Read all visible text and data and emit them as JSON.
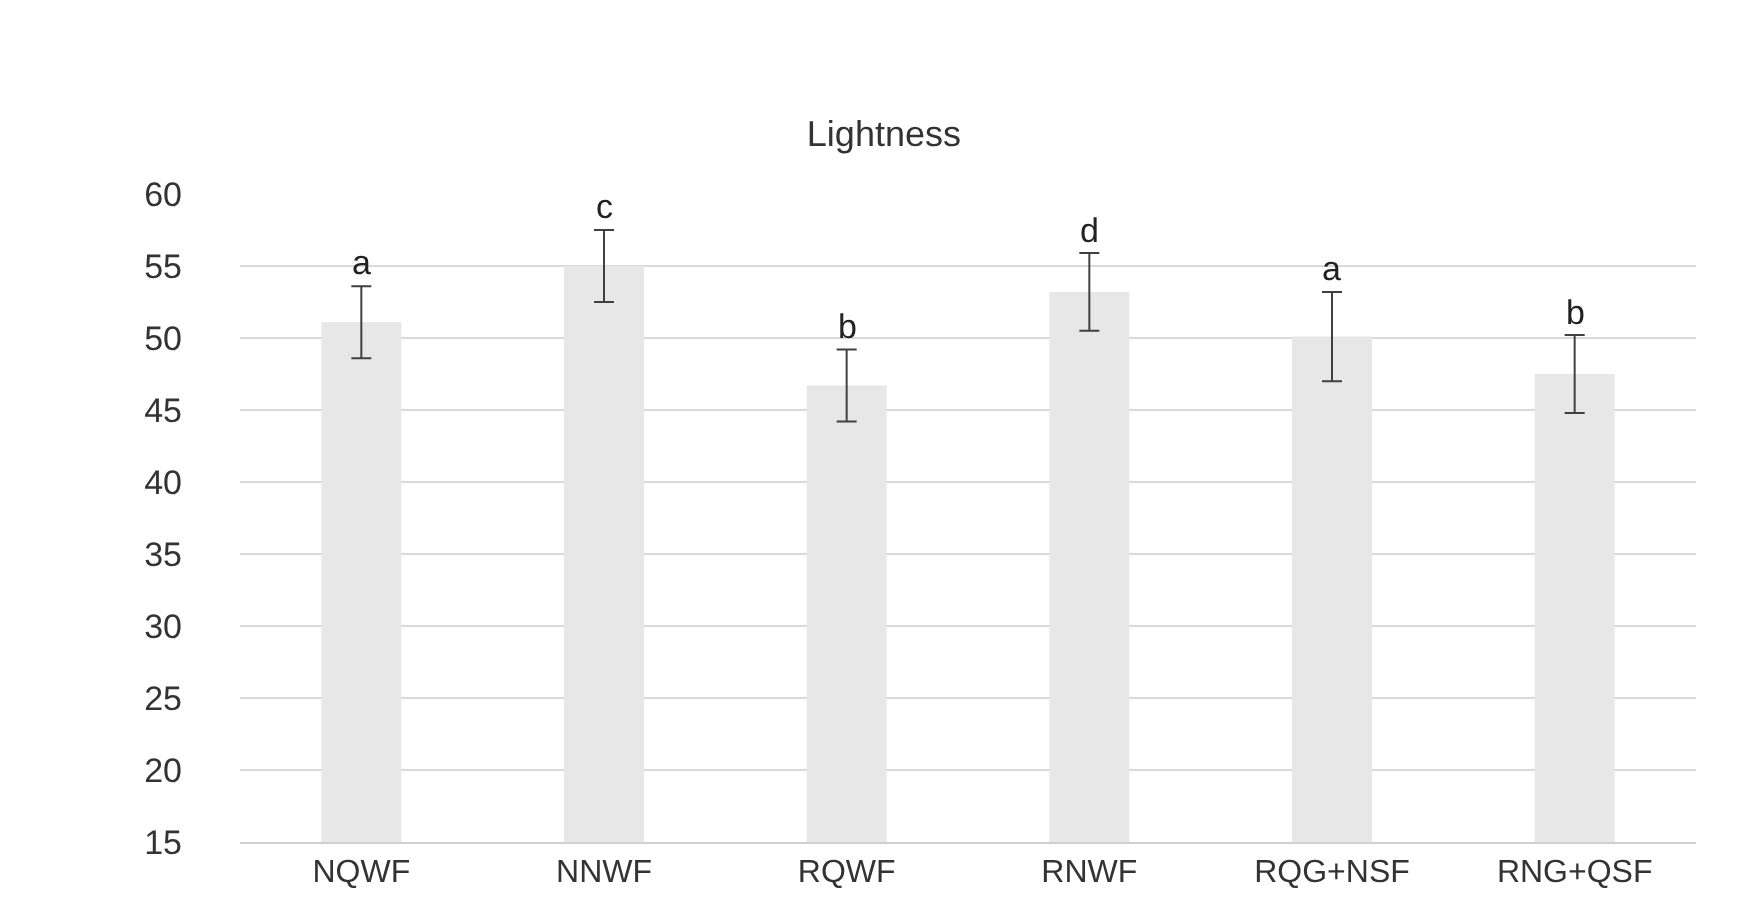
{
  "chart_data": {
    "type": "bar",
    "title": "Lightness",
    "categories": [
      "NQWF",
      "NNWF",
      "RQWF",
      "RNWF",
      "RQG+NSF",
      "RNG+QSF"
    ],
    "values": [
      51.1,
      55.0,
      46.7,
      53.2,
      50.1,
      47.5
    ],
    "errors": [
      2.5,
      2.5,
      2.5,
      2.7,
      3.1,
      2.7
    ],
    "color": "#e7e7e7",
    "ylim": [
      15,
      60
    ],
    "yticks": [
      15,
      20,
      25,
      30,
      35,
      40,
      45,
      50,
      55,
      60
    ],
    "grid": "y",
    "annotations": [
      {
        "text": "a",
        "x": "NQWF",
        "y": 53.6
      },
      {
        "text": "c",
        "x": "NNWF",
        "y": 57.5
      },
      {
        "text": "b",
        "x": "RQWF",
        "y": 49.2
      },
      {
        "text": "d",
        "x": "RNWF",
        "y": 55.9
      },
      {
        "text": "a",
        "x": "RQG+NSF",
        "y": 53.2
      },
      {
        "text": "b",
        "x": "RNG+QSF",
        "y": 50.2
      }
    ]
  }
}
